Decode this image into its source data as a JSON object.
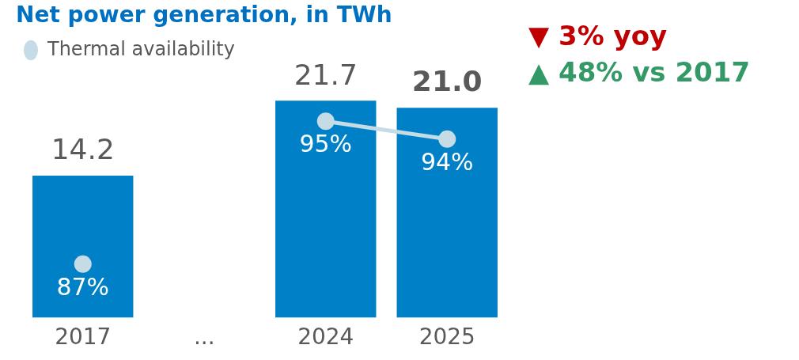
{
  "chart_data": {
    "type": "bar",
    "title": "Net power generation, in TWh",
    "categories": [
      "2017",
      "...",
      "2024",
      "2025"
    ],
    "series": [
      {
        "color": "#0080c6",
        "values": [
          14.2,
          null,
          21.7,
          21.0
        ],
        "value_labels": [
          "14.2",
          null,
          "21.7",
          "21.0"
        ]
      },
      {
        "type": "line",
        "name": "Thermal availability",
        "axis": "y2",
        "color": "#c5dbe6",
        "values": [
          87,
          null,
          95,
          94
        ],
        "value_labels": [
          "87%",
          null,
          "95%",
          "94%"
        ]
      }
    ],
    "data_labels": true,
    "tick_labels": "x",
    "grid": false,
    "legend": "top left",
    "marker": "circle",
    "annotations": [
      "▼ 3% yoy",
      "▲ 48% vs 2017"
    ]
  }
}
